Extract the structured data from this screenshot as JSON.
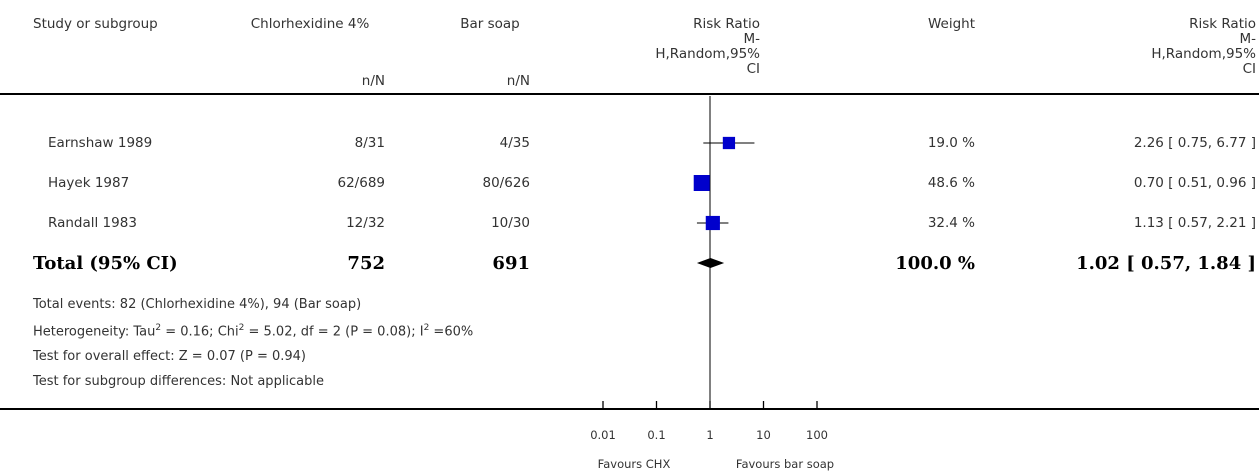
{
  "header": {
    "study": "Study or subgroup",
    "group1": "Chlorhexidine 4%",
    "group2": "Bar soap",
    "n_label": "n/N",
    "rr_title": "Risk Ratio",
    "rr_method_l1": "M-",
    "rr_method_l2": "H,Random,95%",
    "rr_method_l3": "CI",
    "weight": "Weight"
  },
  "studies": [
    {
      "name": "Earnshaw 1989",
      "g1": "8/31",
      "g2": "4/35",
      "weight": "19.0 %",
      "ci_text": "2.26 [ 0.75, 6.77 ]"
    },
    {
      "name": "Hayek 1987",
      "g1": "62/689",
      "g2": "80/626",
      "weight": "48.6 %",
      "ci_text": "0.70 [ 0.51, 0.96 ]"
    },
    {
      "name": "Randall 1983",
      "g1": "12/32",
      "g2": "10/30",
      "weight": "32.4 %",
      "ci_text": "1.13 [ 0.57, 2.21 ]"
    }
  ],
  "total": {
    "label": "Total (95% CI)",
    "g1": "752",
    "g2": "691",
    "weight": "100.0 %",
    "ci_text": "1.02 [ 0.57, 1.84 ]"
  },
  "notes": {
    "events": "Total events: 82 (Chlorhexidine 4%), 94 (Bar soap)",
    "het_a": "Heterogeneity: Tau",
    "het_b": " = 0.16; Chi",
    "het_c": " = 5.02, df = 2 (P = 0.08); I",
    "het_d": " =60%",
    "sup2": "2",
    "overall": "Test for overall effect: Z = 0.07 (P = 0.94)",
    "subgroup": "Test for subgroup differences: Not applicable"
  },
  "axis": {
    "favours_left": "Favours CHX",
    "favours_right": "Favours bar soap"
  },
  "chart_data": {
    "type": "forest",
    "scale": "log",
    "xlim": [
      0.01,
      100
    ],
    "ticks": [
      {
        "value": 0.01,
        "label": "0.01"
      },
      {
        "value": 0.1,
        "label": "0.1"
      },
      {
        "value": 1,
        "label": "1"
      },
      {
        "value": 10,
        "label": "10"
      },
      {
        "value": 100,
        "label": "100"
      }
    ],
    "studies": [
      {
        "name": "Earnshaw 1989",
        "rr": 2.26,
        "lo": 0.75,
        "hi": 6.77,
        "weight": 19.0
      },
      {
        "name": "Hayek 1987",
        "rr": 0.7,
        "lo": 0.51,
        "hi": 0.96,
        "weight": 48.6
      },
      {
        "name": "Randall 1983",
        "rr": 1.13,
        "lo": 0.57,
        "hi": 2.21,
        "weight": 32.4
      }
    ],
    "pooled": {
      "rr": 1.02,
      "lo": 0.57,
      "hi": 1.84
    },
    "colors": {
      "box": "#0000cc",
      "line": "#000000"
    }
  }
}
